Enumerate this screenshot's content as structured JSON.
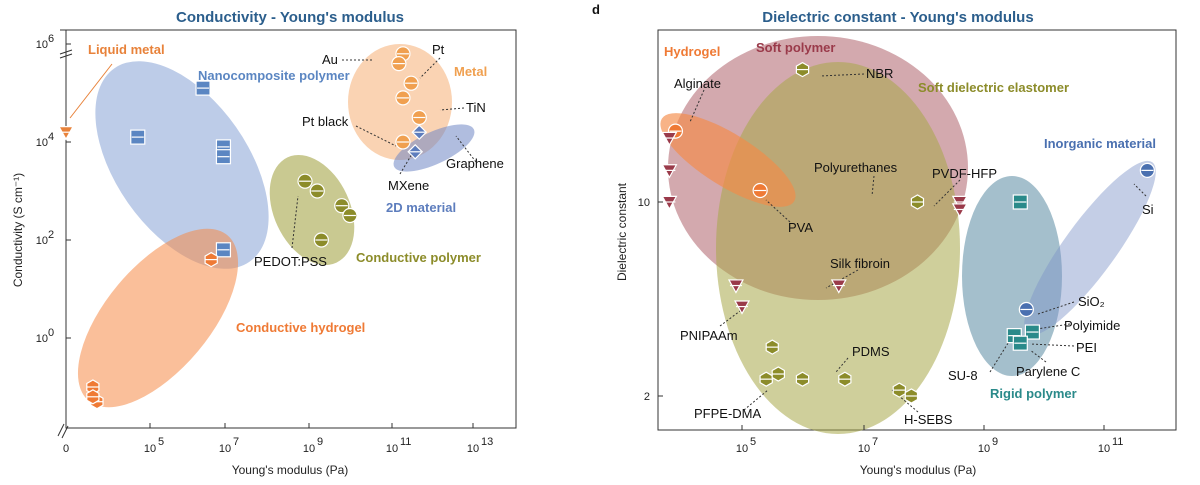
{
  "panel_letter": "d",
  "chart_data": [
    {
      "type": "scatter",
      "title": "Conductivity - Young's modulus",
      "xlabel": "Young's modulus (Pa)",
      "ylabel": "Conductivity (S cm⁻¹)",
      "xscale": "log",
      "yscale": "log",
      "xlim_exp": [
        3,
        14.8
      ],
      "ylim_exp": [
        -1.9,
        6.2
      ],
      "x_ticks": [
        {
          "exp": 5,
          "label": "10"
        },
        {
          "exp": 7,
          "label": "10"
        },
        {
          "exp": 9,
          "label": "10"
        },
        {
          "exp": 11,
          "label": "10"
        },
        {
          "exp": 13,
          "label": "10"
        }
      ],
      "x_tick_exps": [
        "5",
        "7",
        "9",
        "11",
        "13"
      ],
      "y_ticks": [
        {
          "exp": 0,
          "label": "10"
        },
        {
          "exp": 2,
          "label": "10"
        },
        {
          "exp": 4,
          "label": "10"
        },
        {
          "exp": 6,
          "label": "10"
        }
      ],
      "y_tick_exps": [
        "0",
        "2",
        "4",
        "6"
      ],
      "x_zero_label": "0",
      "regions": [
        {
          "name": "Liquid metal",
          "color": "#e8823a"
        },
        {
          "name": "Nanocomposite polymer",
          "color": "#5b86c2"
        },
        {
          "name": "Metal",
          "color": "#f0a050"
        },
        {
          "name": "2D material",
          "color": "#5d7dbd"
        },
        {
          "name": "Conductive polymer",
          "color": "#8c8c2a"
        },
        {
          "name": "Conductive hydrogel",
          "color": "#ef7a35"
        }
      ],
      "annotations": [
        "Au",
        "Pt",
        "TiN",
        "Pt black",
        "Graphene",
        "MXene",
        "PEDOT:PSS"
      ],
      "series": [
        {
          "group": "Liquid metal",
          "shape": "tri-down",
          "points": [
            [
              0,
              4.2
            ]
          ]
        },
        {
          "group": "Nanocomposite polymer",
          "shape": "square",
          "points": [
            [
              6.3,
              5.1
            ],
            [
              4.7,
              4.1
            ],
            [
              6.8,
              3.9
            ],
            [
              6.8,
              3.7
            ],
            [
              6.8,
              1.8
            ]
          ]
        },
        {
          "group": "Metal",
          "shape": "circle",
          "points": [
            [
              11.2,
              5.8
            ],
            [
              11.1,
              5.6
            ],
            [
              11.4,
              5.2
            ],
            [
              11.2,
              4.9
            ],
            [
              11.6,
              4.5
            ],
            [
              11.2,
              4.0
            ]
          ]
        },
        {
          "group": "2D material",
          "shape": "diamond",
          "points": [
            [
              11.6,
              4.2
            ],
            [
              11.5,
              3.8
            ]
          ]
        },
        {
          "group": "Conductive polymer",
          "shape": "circle",
          "points": [
            [
              8.8,
              3.2
            ],
            [
              9.1,
              3.0
            ],
            [
              9.7,
              2.7
            ],
            [
              9.9,
              2.5
            ],
            [
              9.2,
              2.0
            ]
          ]
        },
        {
          "group": "Conductive hydrogel",
          "shape": "hexagon",
          "points": [
            [
              6.5,
              1.6
            ],
            [
              3.6,
              -1.0
            ],
            [
              3.7,
              -1.3
            ],
            [
              3.6,
              -1.2
            ]
          ]
        }
      ]
    },
    {
      "type": "scatter",
      "title": "Dielectric constant - Young's modulus",
      "xlabel": "Young's modulus (Pa)",
      "ylabel": "Dielectric constant",
      "xscale": "log",
      "yscale": "log",
      "xlim_exp": [
        3.4,
        12.2
      ],
      "ylim": [
        1.7,
        50
      ],
      "x_ticks": [
        {
          "exp": 5,
          "label": "10"
        },
        {
          "exp": 7,
          "label": "10"
        },
        {
          "exp": 9,
          "label": "10"
        },
        {
          "exp": 11,
          "label": "10"
        }
      ],
      "x_tick_exps": [
        "5",
        "7",
        "9",
        "11"
      ],
      "y_ticks": [
        {
          "value": 2,
          "label": "2"
        },
        {
          "value": 10,
          "label": "10"
        }
      ],
      "regions": [
        {
          "name": "Hydrogel",
          "color": "#ef7a35"
        },
        {
          "name": "Soft polymer",
          "color": "#9a3a4a"
        },
        {
          "name": "Soft dielectric elastomer",
          "color": "#8c8c2a"
        },
        {
          "name": "Inorganic material",
          "color": "#4a70b0"
        },
        {
          "name": "Rigid polymer",
          "color": "#2a8a8a"
        }
      ],
      "annotations": [
        "Alginate",
        "NBR",
        "Polyurethanes",
        "PVDF-HFP",
        "PVA",
        "Silk fibroin",
        "PNIPAAm",
        "PDMS",
        "PFPE-DMA",
        "H-SEBS",
        "Si",
        "SiO₂",
        "Polyimide",
        "PEI",
        "SU-8",
        "Parylene C"
      ],
      "series": [
        {
          "group": "Hydrogel",
          "shape": "circle",
          "points": [
            [
              3.9,
              18
            ],
            [
              5.3,
              11
            ]
          ]
        },
        {
          "group": "Soft polymer",
          "shape": "tri-down",
          "points": [
            [
              3.8,
              17
            ],
            [
              3.8,
              13
            ],
            [
              3.8,
              10
            ],
            [
              4.9,
              5.0
            ],
            [
              5.0,
              4.2
            ],
            [
              6.6,
              5.0
            ],
            [
              8.6,
              10.0
            ],
            [
              8.6,
              9.4
            ]
          ]
        },
        {
          "group": "Soft dielectric elastomer",
          "shape": "hexagon",
          "points": [
            [
              6.0,
              30
            ],
            [
              7.9,
              10
            ],
            [
              5.5,
              3.0
            ],
            [
              5.4,
              2.3
            ],
            [
              5.6,
              2.4
            ],
            [
              6.0,
              2.3
            ],
            [
              6.7,
              2.3
            ],
            [
              7.6,
              2.1
            ],
            [
              7.8,
              2.0
            ]
          ]
        },
        {
          "group": "Inorganic material",
          "shape": "circle",
          "points": [
            [
              11.7,
              13
            ],
            [
              9.7,
              4.1
            ]
          ]
        },
        {
          "group": "Rigid polymer",
          "shape": "square",
          "points": [
            [
              9.6,
              10.0
            ],
            [
              9.5,
              3.3
            ],
            [
              9.8,
              3.4
            ],
            [
              9.6,
              3.1
            ]
          ]
        }
      ]
    }
  ]
}
